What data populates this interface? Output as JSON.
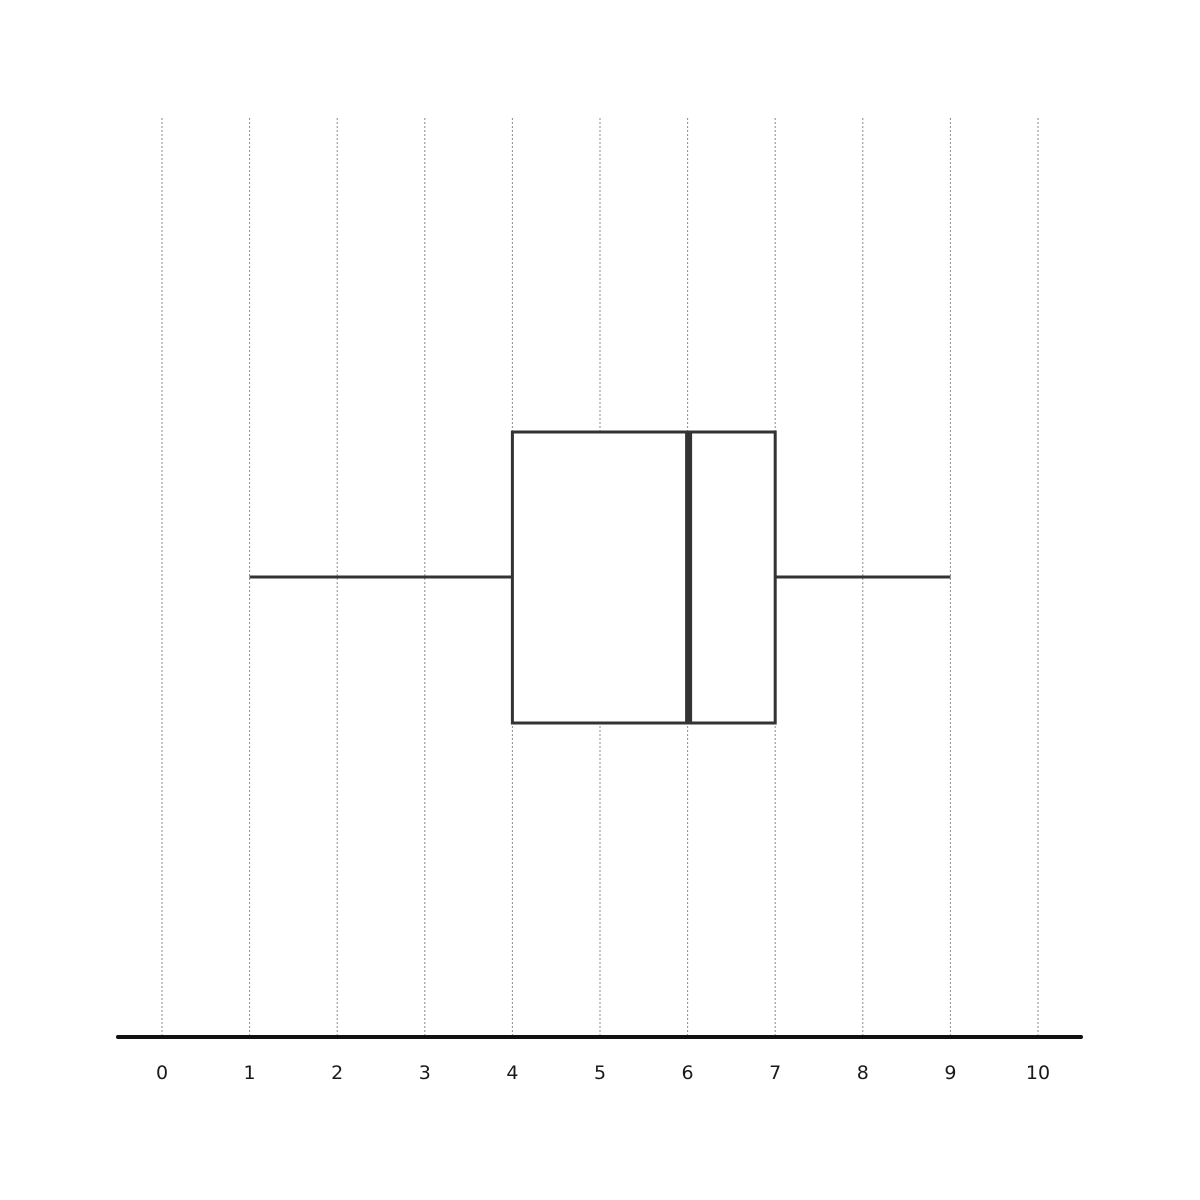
{
  "chart_data": {
    "type": "boxplot",
    "orientation": "horizontal",
    "title": "",
    "xlabel": "",
    "ylabel": "",
    "xlim": [
      -0.5,
      10.5
    ],
    "x_ticks": [
      0,
      1,
      2,
      3,
      4,
      5,
      6,
      7,
      8,
      9,
      10
    ],
    "x_tick_labels": [
      "0",
      "1",
      "2",
      "3",
      "4",
      "5",
      "6",
      "7",
      "8",
      "9",
      "10"
    ],
    "grid": "vertical dotted",
    "series": [
      {
        "min": 1,
        "q1": 4,
        "median": 6,
        "q3": 7,
        "max": 9
      }
    ]
  }
}
